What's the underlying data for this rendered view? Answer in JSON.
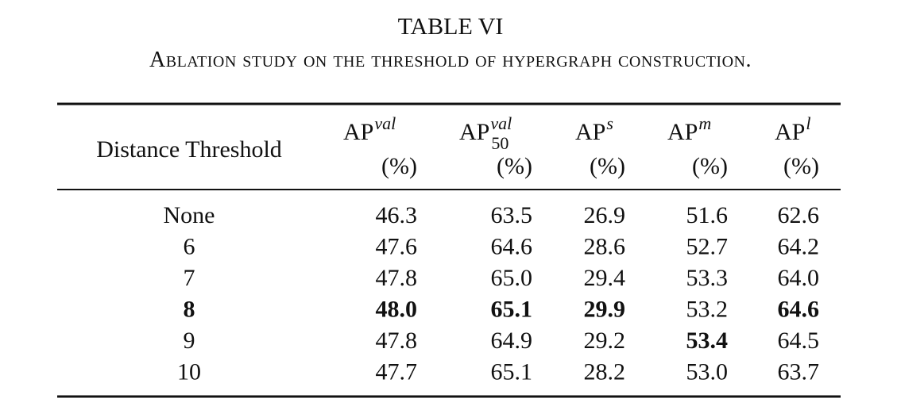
{
  "title": "TABLE VI",
  "caption": "Ablation study on the threshold of hypergraph construction.",
  "table": {
    "header": [
      {
        "text": "Distance Threshold"
      },
      {
        "base": "AP",
        "sup": "val",
        "unit": "(%)"
      },
      {
        "base": "AP",
        "sup": "val",
        "sub": "50",
        "unit": "(%)"
      },
      {
        "base": "AP",
        "sup": "s",
        "unit": "(%)"
      },
      {
        "base": "AP",
        "sup": "m",
        "unit": "(%)"
      },
      {
        "base": "AP",
        "sup": "l",
        "unit": "(%)"
      }
    ],
    "rows": [
      {
        "cells": [
          "None",
          "46.3",
          "63.5",
          "26.9",
          "51.6",
          "62.6"
        ],
        "bold": []
      },
      {
        "cells": [
          "6",
          "47.6",
          "64.6",
          "28.6",
          "52.7",
          "64.2"
        ],
        "bold": []
      },
      {
        "cells": [
          "7",
          "47.8",
          "65.0",
          "29.4",
          "53.3",
          "64.0"
        ],
        "bold": []
      },
      {
        "cells": [
          "8",
          "48.0",
          "65.1",
          "29.9",
          "53.2",
          "64.6"
        ],
        "bold": [
          0,
          1,
          2,
          3,
          5
        ]
      },
      {
        "cells": [
          "9",
          "47.8",
          "64.9",
          "29.2",
          "53.4",
          "64.5"
        ],
        "bold": [
          4
        ]
      },
      {
        "cells": [
          "10",
          "47.7",
          "65.1",
          "28.2",
          "53.0",
          "63.7"
        ],
        "bold": []
      }
    ]
  }
}
